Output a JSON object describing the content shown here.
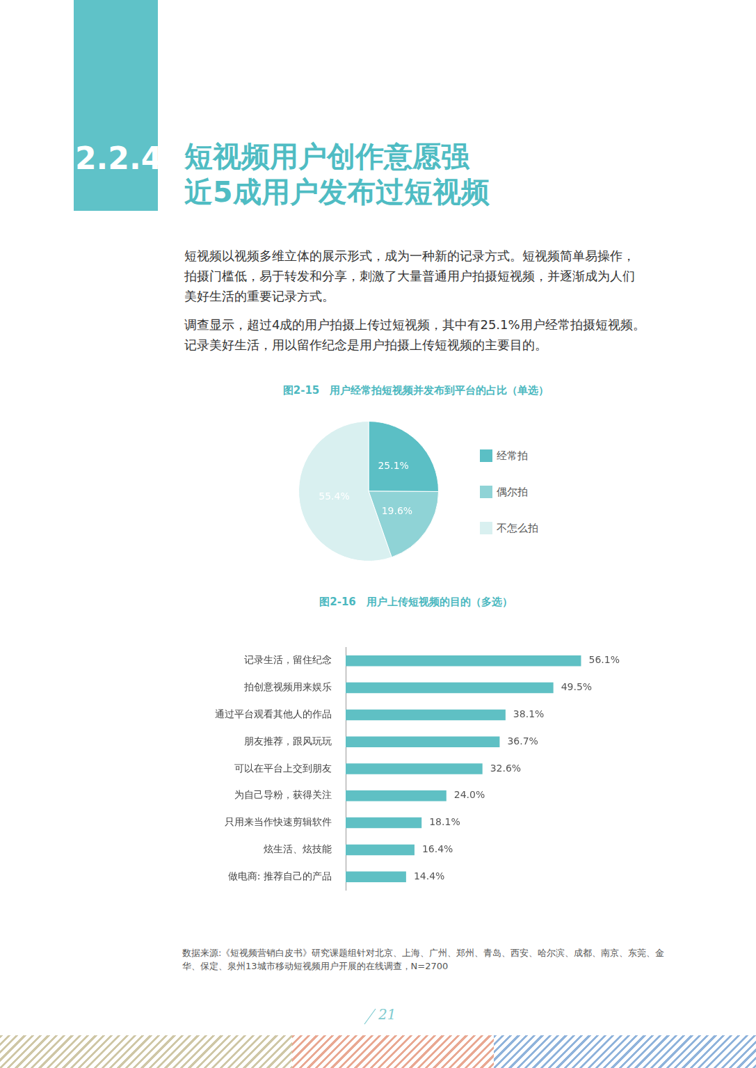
{
  "section_number": "2.2.4",
  "title": [
    "短视频用户创作意愿强",
    "近5成用户发布过短视频"
  ],
  "paragraphs": [
    "短视频以视频多维立体的展示形式，成为一种新的记录方式。短视频简单易操作，拍摄门槛低，易于转发和分享，刺激了大量普通用户拍摄短视频，并逐渐成为人们美好生活的重要记录方式。",
    "调查显示，超过4成的用户拍摄上传过短视频，其中有25.1%用户经常拍摄短视频。记录美好生活，用以留作纪念是用户拍摄上传短视频的主要目的。"
  ],
  "chart_data": [
    {
      "type": "pie",
      "title": "图2-15　用户经常拍短视频并发布到平台的占比（单选）",
      "categories": [
        "经常拍",
        "偶尔拍",
        "不怎么拍"
      ],
      "values": [
        25.1,
        19.6,
        55.4
      ],
      "value_labels": [
        "25.1%",
        "19.6%",
        "55.4%"
      ],
      "colors": [
        "#5bbfc5",
        "#8fd3d6",
        "#d9f0f0"
      ],
      "data_labels": true,
      "legend": "right"
    },
    {
      "type": "bar",
      "title": "图2-16　用户上传短视频的目的（多选）",
      "orientation": "horizontal",
      "categories": [
        "记录生活，留住纪念",
        "拍创意视频用来娱乐",
        "通过平台观看其他人的作品",
        "朋友推荐，跟风玩玩",
        "可以在平台上交到朋友",
        "为自己导粉，获得关注",
        "只用来当作快速剪辑软件",
        "炫生活、炫技能",
        "做电商: 推荐自己的产品"
      ],
      "values": [
        56.1,
        49.5,
        38.1,
        36.7,
        32.6,
        24.0,
        18.1,
        16.4,
        14.4
      ],
      "value_labels": [
        "56.1%",
        "49.5%",
        "38.1%",
        "36.7%",
        "32.6%",
        "24.0%",
        "18.1%",
        "16.4%",
        "14.4%"
      ],
      "color": "#5fc0c4",
      "xlim": [
        0,
        60
      ],
      "data_labels": true,
      "tick_labels": "y",
      "grid": false
    }
  ],
  "source": "数据来源:《短视频营销白皮书》研究课题组针对北京、上海、广州、郑州、青岛、西安、哈尔滨、成都、南京、东莞、金华、保定、泉州13城市移动短视频用户开展的在线调查，N=2700",
  "page_number": 21
}
